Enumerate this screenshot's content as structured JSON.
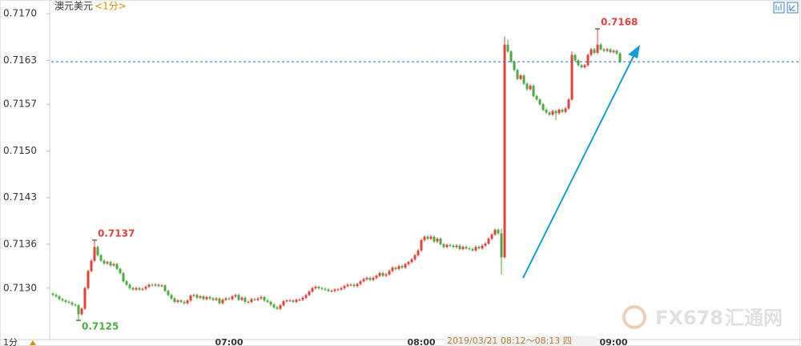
{
  "chart_data": {
    "type": "candlestick",
    "title": "澳元美元",
    "subtitle": "<1分>",
    "period_label": "1分",
    "tooltip": "2019/03/21 08:12～08:13 四",
    "watermark": [
      "FX678",
      "汇通网"
    ],
    "up_color": "#e0413b",
    "down_color": "#4fa843",
    "current_line_color": "#2a6fb5",
    "ylim": [
      0.71225,
      0.7172
    ],
    "yticks": [
      {
        "value": 0.713,
        "label": "0.7130"
      },
      {
        "value": 0.71364,
        "label": "0.7136"
      },
      {
        "value": 0.71432,
        "label": "0.7143"
      },
      {
        "value": 0.715,
        "label": "0.7150"
      },
      {
        "value": 0.71568,
        "label": "0.7157"
      },
      {
        "value": 0.71632,
        "label": "0.7163"
      },
      {
        "value": 0.717,
        "label": "0.7170"
      }
    ],
    "xticks": [
      "07:00",
      "08:00",
      "09:00"
    ],
    "x": [
      "06:05",
      "06:06",
      "06:07",
      "06:08",
      "06:09",
      "06:10",
      "06:11",
      "06:12",
      "06:13",
      "06:14",
      "06:15",
      "06:16",
      "06:17",
      "06:18",
      "06:19",
      "06:20",
      "06:21",
      "06:22",
      "06:23",
      "06:24",
      "06:25",
      "06:26",
      "06:27",
      "06:28",
      "06:29",
      "06:30",
      "06:31",
      "06:32",
      "06:33",
      "06:34",
      "06:35",
      "06:36",
      "06:37",
      "06:38",
      "06:39",
      "06:40",
      "06:41",
      "06:42",
      "06:43",
      "06:44",
      "06:45",
      "06:46",
      "06:47",
      "06:48",
      "06:49",
      "06:50",
      "06:51",
      "06:52",
      "06:53",
      "06:54",
      "06:55",
      "06:56",
      "06:57",
      "06:58",
      "06:59",
      "07:00",
      "07:01",
      "07:02",
      "07:03",
      "07:04",
      "07:05",
      "07:06",
      "07:07",
      "07:08",
      "07:09",
      "07:10",
      "07:11",
      "07:12",
      "07:13",
      "07:14",
      "07:15",
      "07:16",
      "07:17",
      "07:18",
      "07:19",
      "07:20",
      "07:21",
      "07:22",
      "07:23",
      "07:24",
      "07:25",
      "07:26",
      "07:27",
      "07:28",
      "07:29",
      "07:30",
      "07:31",
      "07:32",
      "07:33",
      "07:34",
      "07:35",
      "07:36",
      "07:37",
      "07:38",
      "07:39",
      "07:40",
      "07:41",
      "07:42",
      "07:43",
      "07:44",
      "07:45",
      "07:46",
      "07:47",
      "07:48",
      "07:49",
      "07:50",
      "07:51",
      "07:52",
      "07:53",
      "07:54",
      "07:55",
      "07:56",
      "07:57",
      "07:58",
      "07:59",
      "08:00",
      "08:01",
      "08:02",
      "08:03",
      "08:04",
      "08:05",
      "08:06",
      "08:07",
      "08:08",
      "08:09",
      "08:10",
      "08:11",
      "08:12",
      "08:13",
      "08:14",
      "08:15",
      "08:16",
      "08:17",
      "08:18",
      "08:19",
      "08:20",
      "08:21",
      "08:22",
      "08:23",
      "08:24",
      "08:25",
      "08:26",
      "08:27",
      "08:28",
      "08:29",
      "08:30",
      "08:31",
      "08:32",
      "08:33",
      "08:34",
      "08:35",
      "08:36",
      "08:37",
      "08:38",
      "08:39",
      "08:40",
      "08:41",
      "08:42",
      "08:43",
      "08:44",
      "08:45",
      "08:46",
      "08:47",
      "08:48",
      "08:49",
      "08:50",
      "08:51",
      "08:52",
      "08:53",
      "08:54",
      "08:55",
      "08:56",
      "08:57",
      "08:58",
      "08:59",
      "09:00",
      "09:01",
      "09:02"
    ],
    "open": [
      0.71292,
      0.7129,
      0.71288,
      0.71284,
      0.71282,
      0.7128,
      0.71279,
      0.71276,
      0.71275,
      0.71262,
      0.7127,
      0.713,
      0.71325,
      0.7134,
      0.7136,
      0.71348,
      0.7134,
      0.71336,
      0.71338,
      0.71333,
      0.71335,
      0.71328,
      0.71322,
      0.7131,
      0.71305,
      0.713,
      0.71298,
      0.713,
      0.71298,
      0.71299,
      0.71302,
      0.71305,
      0.71304,
      0.71305,
      0.71303,
      0.71304,
      0.71296,
      0.7129,
      0.71285,
      0.7128,
      0.71282,
      0.7128,
      0.71278,
      0.71282,
      0.71289,
      0.7129,
      0.71286,
      0.71288,
      0.71284,
      0.71287,
      0.71285,
      0.71283,
      0.71285,
      0.71278,
      0.71283,
      0.71285,
      0.71284,
      0.71288,
      0.7129,
      0.71283,
      0.71286,
      0.7128,
      0.7128,
      0.71284,
      0.71283,
      0.71285,
      0.71287,
      0.71282,
      0.7128,
      0.71276,
      0.71272,
      0.7127,
      0.71275,
      0.71281,
      0.71282,
      0.71282,
      0.7128,
      0.71283,
      0.71283,
      0.71286,
      0.7129,
      0.71295,
      0.713,
      0.71302,
      0.713,
      0.71299,
      0.71298,
      0.71296,
      0.71296,
      0.71298,
      0.71298,
      0.713,
      0.71303,
      0.71305,
      0.71305,
      0.71303,
      0.71306,
      0.7131,
      0.71313,
      0.71315,
      0.71312,
      0.71315,
      0.71318,
      0.71322,
      0.71318,
      0.7132,
      0.71325,
      0.7133,
      0.71328,
      0.71332,
      0.7133,
      0.71335,
      0.71338,
      0.71342,
      0.71348,
      0.71355,
      0.7137,
      0.71375,
      0.71372,
      0.71375,
      0.71368,
      0.71372,
      0.71364,
      0.7136,
      0.71363,
      0.71362,
      0.7136,
      0.71362,
      0.71357,
      0.7136,
      0.71358,
      0.71357,
      0.71355,
      0.7136,
      0.71358,
      0.71362,
      0.71365,
      0.71372,
      0.71378,
      0.71385,
      0.7138,
      0.71345,
      0.71655,
      0.71645,
      0.7163,
      0.71618,
      0.71605,
      0.7161,
      0.71598,
      0.7159,
      0.71595,
      0.7158,
      0.71575,
      0.71568,
      0.7156,
      0.71556,
      0.71553,
      0.71558,
      0.71555,
      0.7156,
      0.71557,
      0.71562,
      0.71575,
      0.7164,
      0.71632,
      0.71625,
      0.71622,
      0.71625,
      0.7164,
      0.71648,
      0.71643,
      0.71655,
      0.71648,
      0.71646,
      0.71648,
      0.71644,
      0.71646,
      0.71642
    ],
    "high": [
      0.71294,
      0.71292,
      0.7129,
      0.71286,
      0.71284,
      0.71282,
      0.71281,
      0.71278,
      0.71277,
      0.71272,
      0.71302,
      0.71327,
      0.71342,
      0.7137,
      0.71362,
      0.7135,
      0.71342,
      0.7134,
      0.7134,
      0.71337,
      0.71337,
      0.7133,
      0.71324,
      0.71312,
      0.71307,
      0.71302,
      0.71302,
      0.71302,
      0.71301,
      0.71304,
      0.71307,
      0.71307,
      0.71307,
      0.71307,
      0.71306,
      0.71306,
      0.71298,
      0.71292,
      0.71287,
      0.71284,
      0.71284,
      0.71282,
      0.71284,
      0.71291,
      0.71292,
      0.71292,
      0.7129,
      0.7129,
      0.71289,
      0.71289,
      0.71287,
      0.71287,
      0.71287,
      0.71285,
      0.71287,
      0.71287,
      0.7129,
      0.71292,
      0.71292,
      0.71288,
      0.71288,
      0.71282,
      0.71286,
      0.71286,
      0.71287,
      0.71289,
      0.71289,
      0.71284,
      0.71282,
      0.71278,
      0.71274,
      0.71277,
      0.71283,
      0.71284,
      0.71284,
      0.71284,
      0.71285,
      0.71285,
      0.71288,
      0.71292,
      0.71297,
      0.71302,
      0.71304,
      0.71304,
      0.71302,
      0.71301,
      0.713,
      0.71298,
      0.713,
      0.713,
      0.71302,
      0.71305,
      0.71307,
      0.71307,
      0.71307,
      0.71308,
      0.71312,
      0.71315,
      0.71317,
      0.71317,
      0.71317,
      0.7132,
      0.71324,
      0.71324,
      0.71322,
      0.71327,
      0.71332,
      0.71332,
      0.71334,
      0.71334,
      0.71337,
      0.7134,
      0.71344,
      0.7135,
      0.71357,
      0.71372,
      0.71377,
      0.71377,
      0.71377,
      0.71377,
      0.71374,
      0.71374,
      0.71366,
      0.71365,
      0.71365,
      0.71364,
      0.71364,
      0.71364,
      0.71362,
      0.71362,
      0.7136,
      0.71359,
      0.71362,
      0.71362,
      0.71364,
      0.71367,
      0.71374,
      0.7138,
      0.71387,
      0.71387,
      0.71387,
      0.71667,
      0.71662,
      0.71647,
      0.71632,
      0.7162,
      0.71612,
      0.71612,
      0.716,
      0.71597,
      0.71597,
      0.71582,
      0.71577,
      0.7157,
      0.71562,
      0.71558,
      0.7156,
      0.7156,
      0.71562,
      0.71562,
      0.71564,
      0.71577,
      0.71645,
      0.71642,
      0.71634,
      0.71627,
      0.71627,
      0.71642,
      0.7165,
      0.7165,
      0.71678,
      0.71657,
      0.7165,
      0.7165,
      0.7165,
      0.71648,
      0.71648,
      0.71644
    ],
    "low": [
      0.71288,
      0.71286,
      0.71282,
      0.7128,
      0.71278,
      0.71277,
      0.71274,
      0.71273,
      0.71253,
      0.7126,
      0.71268,
      0.71298,
      0.71323,
      0.71338,
      0.71346,
      0.71338,
      0.71334,
      0.71334,
      0.71331,
      0.71331,
      0.71326,
      0.7132,
      0.71308,
      0.71303,
      0.71298,
      0.71296,
      0.71296,
      0.71296,
      0.71296,
      0.71297,
      0.713,
      0.71302,
      0.71302,
      0.71301,
      0.71301,
      0.71294,
      0.71288,
      0.71283,
      0.71278,
      0.71278,
      0.71278,
      0.71276,
      0.71276,
      0.7128,
      0.71287,
      0.71284,
      0.71284,
      0.71282,
      0.71282,
      0.71283,
      0.71281,
      0.71281,
      0.71276,
      0.71276,
      0.71281,
      0.71282,
      0.71282,
      0.71286,
      0.71281,
      0.71281,
      0.71278,
      0.71278,
      0.71278,
      0.71281,
      0.71281,
      0.71283,
      0.7128,
      0.71278,
      0.71274,
      0.7127,
      0.71268,
      0.71268,
      0.71273,
      0.71279,
      0.7128,
      0.71278,
      0.71278,
      0.71281,
      0.71281,
      0.71284,
      0.71288,
      0.71293,
      0.71298,
      0.71298,
      0.71297,
      0.71296,
      0.71294,
      0.71294,
      0.71294,
      0.71296,
      0.71296,
      0.71298,
      0.71301,
      0.71303,
      0.71301,
      0.71301,
      0.71304,
      0.71308,
      0.71311,
      0.7131,
      0.7131,
      0.71313,
      0.71316,
      0.71316,
      0.71316,
      0.71318,
      0.71323,
      0.71326,
      0.71326,
      0.71328,
      0.71328,
      0.71333,
      0.71336,
      0.7134,
      0.71346,
      0.71353,
      0.71368,
      0.7137,
      0.7137,
      0.71366,
      0.71366,
      0.71362,
      0.71358,
      0.71358,
      0.7136,
      0.71358,
      0.71358,
      0.71355,
      0.71355,
      0.71356,
      0.71355,
      0.71353,
      0.71353,
      0.71356,
      0.71356,
      0.7136,
      0.71363,
      0.7137,
      0.71376,
      0.71378,
      0.7132,
      0.71343,
      0.71643,
      0.71628,
      0.71616,
      0.71603,
      0.71603,
      0.71596,
      0.71588,
      0.71588,
      0.71578,
      0.71573,
      0.71566,
      0.71558,
      0.71554,
      0.71551,
      0.71551,
      0.71545,
      0.71553,
      0.71555,
      0.71555,
      0.7156,
      0.71573,
      0.7163,
      0.71623,
      0.7162,
      0.7162,
      0.71623,
      0.71638,
      0.71641,
      0.71641,
      0.71646,
      0.71644,
      0.71644,
      0.71642,
      0.71642,
      0.7164,
      0.71628
    ],
    "close": [
      0.7129,
      0.71288,
      0.71284,
      0.71282,
      0.7128,
      0.71279,
      0.71276,
      0.71275,
      0.71262,
      0.7127,
      0.713,
      0.71325,
      0.7134,
      0.7136,
      0.71348,
      0.7134,
      0.71336,
      0.71338,
      0.71333,
      0.71335,
      0.71328,
      0.71322,
      0.7131,
      0.71305,
      0.713,
      0.71298,
      0.713,
      0.71298,
      0.71299,
      0.71302,
      0.71305,
      0.71304,
      0.71305,
      0.71303,
      0.71304,
      0.71296,
      0.7129,
      0.71285,
      0.7128,
      0.71282,
      0.7128,
      0.71278,
      0.71282,
      0.71289,
      0.7129,
      0.71286,
      0.71288,
      0.71284,
      0.71287,
      0.71285,
      0.71283,
      0.71285,
      0.71278,
      0.71283,
      0.71285,
      0.71284,
      0.71288,
      0.7129,
      0.71283,
      0.71286,
      0.7128,
      0.7128,
      0.71284,
      0.71283,
      0.71285,
      0.71287,
      0.71282,
      0.7128,
      0.71276,
      0.71272,
      0.7127,
      0.71275,
      0.71281,
      0.71282,
      0.71282,
      0.7128,
      0.71283,
      0.71283,
      0.71286,
      0.7129,
      0.71295,
      0.713,
      0.71302,
      0.713,
      0.71299,
      0.71298,
      0.71296,
      0.71296,
      0.71298,
      0.71298,
      0.713,
      0.71303,
      0.71305,
      0.71305,
      0.71303,
      0.71306,
      0.7131,
      0.71313,
      0.71315,
      0.71312,
      0.71315,
      0.71318,
      0.71322,
      0.71318,
      0.7132,
      0.71325,
      0.7133,
      0.71328,
      0.71332,
      0.7133,
      0.71335,
      0.71338,
      0.71342,
      0.71348,
      0.71355,
      0.7137,
      0.71375,
      0.71372,
      0.71375,
      0.71368,
      0.71372,
      0.71364,
      0.7136,
      0.71363,
      0.71362,
      0.7136,
      0.71362,
      0.71357,
      0.7136,
      0.71358,
      0.71357,
      0.71355,
      0.7136,
      0.71358,
      0.71362,
      0.71365,
      0.71372,
      0.71378,
      0.71385,
      0.7138,
      0.71345,
      0.71655,
      0.71645,
      0.7163,
      0.71618,
      0.71605,
      0.7161,
      0.71598,
      0.7159,
      0.71595,
      0.7158,
      0.71575,
      0.71568,
      0.7156,
      0.71556,
      0.71553,
      0.71558,
      0.71555,
      0.7156,
      0.71557,
      0.71562,
      0.71575,
      0.7164,
      0.71632,
      0.71625,
      0.71622,
      0.71625,
      0.7164,
      0.71648,
      0.71643,
      0.71655,
      0.71648,
      0.71646,
      0.71648,
      0.71644,
      0.71646,
      0.71642,
      0.7163
    ],
    "annotations": [
      {
        "text": "0.7137",
        "x": "06:18"
      },
      {
        "text": "0.7125",
        "x": "06:13"
      },
      {
        "text": "0.7168",
        "x": "08:55"
      }
    ]
  }
}
